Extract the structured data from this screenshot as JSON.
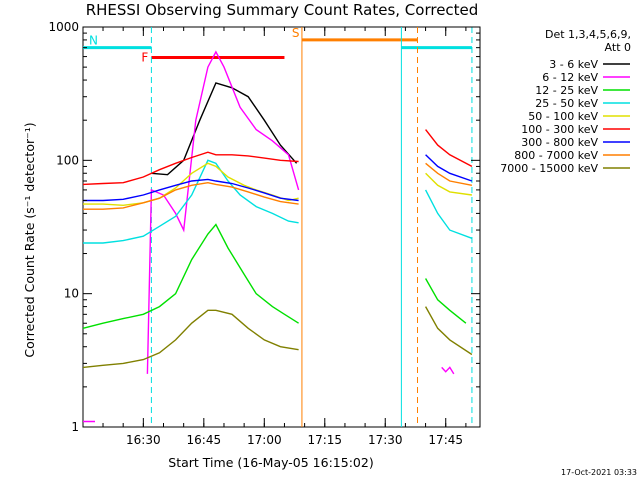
{
  "chart_data": {
    "type": "line",
    "title": "RHESSI Observing Summary Count Rates, Corrected",
    "ylabel": "Corrected Count Rate (s⁻¹ detector⁻¹)",
    "xlabel": "Start Time (16-May-05 16:15:02)",
    "y_scale": "log",
    "ylim": [
      1,
      1000
    ],
    "xlim": [
      "16:15:02",
      "17:53:30"
    ],
    "y_ticks": [
      "1",
      "10",
      "100",
      "1000"
    ],
    "x_ticks": [
      "16:30",
      "16:45",
      "17:00",
      "17:15",
      "17:30",
      "17:45"
    ],
    "detectors": "Det 1,3,4,5,6,9,",
    "attenuator": "Att 0",
    "timestamp": "17-Oct-2021 03:33",
    "flags": [
      {
        "label": "N",
        "color": "#00e0e0",
        "segments": [
          [
            "16:15:02",
            "16:32:00"
          ],
          [
            "17:34:00",
            "17:51:30"
          ]
        ],
        "y": 700
      },
      {
        "label": "F",
        "color": "#ff0000",
        "segments": [
          [
            "16:32:00",
            "17:05:00"
          ]
        ],
        "y": 590
      },
      {
        "label": "S",
        "color": "#ff7f00",
        "segments": [
          [
            "17:09:20",
            "17:38:00"
          ]
        ],
        "y": 800
      }
    ],
    "verticals": [
      {
        "time": "16:32:00",
        "color": "#00e0e0",
        "style": "dashed"
      },
      {
        "time": "17:09:20",
        "color": "#ff7f00",
        "style": "solid"
      },
      {
        "time": "17:34:00",
        "color": "#00e0e0",
        "style": "solid"
      },
      {
        "time": "17:38:00",
        "color": "#ff7f00",
        "style": "dashed"
      },
      {
        "time": "17:51:30",
        "color": "#00e0e0",
        "style": "dashed"
      }
    ],
    "series": [
      {
        "name": "3 - 6 keV",
        "color": "#000000",
        "points": [
          [
            "16:15:02",
            null
          ],
          [
            "16:30:00",
            null
          ],
          [
            "16:32:00",
            80
          ],
          [
            "16:36:00",
            78
          ],
          [
            "16:40:00",
            100
          ],
          [
            "16:44:00",
            200
          ],
          [
            "16:48:00",
            380
          ],
          [
            "16:52:00",
            350
          ],
          [
            "16:56:00",
            300
          ],
          [
            "17:00:00",
            200
          ],
          [
            "17:04:00",
            130
          ],
          [
            "17:08:00",
            95
          ],
          [
            "17:08:30",
            null
          ]
        ]
      },
      {
        "name": "6 - 12 keV",
        "color": "#ff00ff",
        "points": [
          [
            "16:15:02",
            1.1
          ],
          [
            "16:18:00",
            1.1
          ],
          [
            "16:30:00",
            null
          ],
          [
            "16:31:00",
            2.5
          ],
          [
            "16:32:00",
            60
          ],
          [
            "16:35:00",
            55
          ],
          [
            "16:38:00",
            40
          ],
          [
            "16:40:00",
            30
          ],
          [
            "16:43:00",
            200
          ],
          [
            "16:46:00",
            500
          ],
          [
            "16:48:00",
            650
          ],
          [
            "16:50:00",
            500
          ],
          [
            "16:54:00",
            250
          ],
          [
            "16:58:00",
            170
          ],
          [
            "17:02:00",
            140
          ],
          [
            "17:06:00",
            110
          ],
          [
            "17:08:30",
            60
          ],
          [
            "17:08:40",
            null
          ],
          [
            "17:44:00",
            2.8
          ],
          [
            "17:45:00",
            2.6
          ],
          [
            "17:46:00",
            2.8
          ],
          [
            "17:47:00",
            2.5
          ],
          [
            "17:48:00",
            null
          ]
        ]
      },
      {
        "name": "12 - 25 keV",
        "color": "#00e000",
        "points": [
          [
            "16:15:02",
            5.5
          ],
          [
            "16:20:00",
            6
          ],
          [
            "16:25:00",
            6.5
          ],
          [
            "16:30:00",
            7
          ],
          [
            "16:34:00",
            8
          ],
          [
            "16:38:00",
            10
          ],
          [
            "16:42:00",
            18
          ],
          [
            "16:46:00",
            28
          ],
          [
            "16:48:00",
            33
          ],
          [
            "16:51:00",
            22
          ],
          [
            "16:55:00",
            14
          ],
          [
            "16:58:00",
            10
          ],
          [
            "17:02:00",
            8
          ],
          [
            "17:05:00",
            7
          ],
          [
            "17:08:30",
            6
          ],
          [
            "17:08:40",
            null
          ],
          [
            "17:40:00",
            13
          ],
          [
            "17:43:00",
            9
          ],
          [
            "17:46:00",
            7.5
          ],
          [
            "17:50:00",
            6
          ],
          [
            "17:51:30",
            null
          ]
        ]
      },
      {
        "name": "25 - 50 keV",
        "color": "#00e0e0",
        "points": [
          [
            "16:15:02",
            24
          ],
          [
            "16:20:00",
            24
          ],
          [
            "16:25:00",
            25
          ],
          [
            "16:30:00",
            27
          ],
          [
            "16:34:00",
            32
          ],
          [
            "16:38:00",
            38
          ],
          [
            "16:42:00",
            55
          ],
          [
            "16:46:00",
            100
          ],
          [
            "16:48:00",
            95
          ],
          [
            "16:51:00",
            70
          ],
          [
            "16:54:00",
            55
          ],
          [
            "16:58:00",
            45
          ],
          [
            "17:02:00",
            40
          ],
          [
            "17:06:00",
            35
          ],
          [
            "17:08:30",
            34
          ],
          [
            "17:08:40",
            null
          ],
          [
            "17:40:00",
            60
          ],
          [
            "17:43:00",
            40
          ],
          [
            "17:46:00",
            30
          ],
          [
            "17:51:30",
            26
          ]
        ]
      },
      {
        "name": "50 - 100 keV",
        "color": "#e0e000",
        "points": [
          [
            "16:15:02",
            47
          ],
          [
            "16:20:00",
            47
          ],
          [
            "16:25:00",
            46
          ],
          [
            "16:30:00",
            48
          ],
          [
            "16:34:00",
            52
          ],
          [
            "16:38:00",
            62
          ],
          [
            "16:42:00",
            80
          ],
          [
            "16:46:00",
            95
          ],
          [
            "16:48:00",
            90
          ],
          [
            "16:51:00",
            75
          ],
          [
            "16:55:00",
            65
          ],
          [
            "16:58:00",
            60
          ],
          [
            "17:02:00",
            55
          ],
          [
            "17:06:00",
            50
          ],
          [
            "17:08:30",
            52
          ],
          [
            "17:08:40",
            null
          ],
          [
            "17:40:00",
            80
          ],
          [
            "17:43:00",
            65
          ],
          [
            "17:46:00",
            58
          ],
          [
            "17:51:30",
            55
          ]
        ]
      },
      {
        "name": "100 - 300 keV",
        "color": "#ff0000",
        "points": [
          [
            "16:15:02",
            66
          ],
          [
            "16:20:00",
            67
          ],
          [
            "16:25:00",
            68
          ],
          [
            "16:30:00",
            75
          ],
          [
            "16:34:00",
            85
          ],
          [
            "16:38:00",
            95
          ],
          [
            "16:42:00",
            105
          ],
          [
            "16:46:00",
            115
          ],
          [
            "16:48:00",
            110
          ],
          [
            "16:52:00",
            110
          ],
          [
            "16:56:00",
            108
          ],
          [
            "17:00:00",
            104
          ],
          [
            "17:04:00",
            100
          ],
          [
            "17:08:30",
            98
          ],
          [
            "17:08:40",
            null
          ],
          [
            "17:40:00",
            170
          ],
          [
            "17:43:00",
            130
          ],
          [
            "17:46:00",
            110
          ],
          [
            "17:51:30",
            90
          ]
        ]
      },
      {
        "name": "300 - 800 keV",
        "color": "#0000ff",
        "points": [
          [
            "16:15:02",
            50
          ],
          [
            "16:20:00",
            50
          ],
          [
            "16:25:00",
            51
          ],
          [
            "16:30:00",
            55
          ],
          [
            "16:34:00",
            60
          ],
          [
            "16:38:00",
            65
          ],
          [
            "16:42:00",
            70
          ],
          [
            "16:46:00",
            72
          ],
          [
            "16:48:00",
            70
          ],
          [
            "16:52:00",
            67
          ],
          [
            "16:56:00",
            62
          ],
          [
            "17:00:00",
            57
          ],
          [
            "17:04:00",
            52
          ],
          [
            "17:08:30",
            50
          ],
          [
            "17:08:40",
            null
          ],
          [
            "17:40:00",
            110
          ],
          [
            "17:43:00",
            90
          ],
          [
            "17:46:00",
            80
          ],
          [
            "17:51:30",
            70
          ]
        ]
      },
      {
        "name": "800 - 7000 keV",
        "color": "#ff7f00",
        "points": [
          [
            "16:15:02",
            43
          ],
          [
            "16:20:00",
            43
          ],
          [
            "16:25:00",
            44
          ],
          [
            "16:30:00",
            48
          ],
          [
            "16:34:00",
            52
          ],
          [
            "16:38:00",
            60
          ],
          [
            "16:42:00",
            65
          ],
          [
            "16:46:00",
            68
          ],
          [
            "16:48:00",
            66
          ],
          [
            "16:52:00",
            63
          ],
          [
            "16:56:00",
            58
          ],
          [
            "17:00:00",
            53
          ],
          [
            "17:04:00",
            49
          ],
          [
            "17:08:30",
            47
          ],
          [
            "17:08:40",
            null
          ],
          [
            "17:40:00",
            95
          ],
          [
            "17:43:00",
            80
          ],
          [
            "17:46:00",
            70
          ],
          [
            "17:51:30",
            65
          ]
        ]
      },
      {
        "name": "7000 - 15000 keV",
        "color": "#808000",
        "points": [
          [
            "16:15:02",
            2.8
          ],
          [
            "16:20:00",
            2.9
          ],
          [
            "16:25:00",
            3.0
          ],
          [
            "16:30:00",
            3.2
          ],
          [
            "16:34:00",
            3.6
          ],
          [
            "16:38:00",
            4.5
          ],
          [
            "16:42:00",
            6
          ],
          [
            "16:46:00",
            7.5
          ],
          [
            "16:48:00",
            7.5
          ],
          [
            "16:52:00",
            7
          ],
          [
            "16:56:00",
            5.5
          ],
          [
            "17:00:00",
            4.5
          ],
          [
            "17:04:00",
            4
          ],
          [
            "17:08:30",
            3.8
          ],
          [
            "17:08:40",
            null
          ],
          [
            "17:40:00",
            8
          ],
          [
            "17:43:00",
            5.5
          ],
          [
            "17:46:00",
            4.5
          ],
          [
            "17:51:30",
            3.5
          ]
        ]
      }
    ]
  }
}
